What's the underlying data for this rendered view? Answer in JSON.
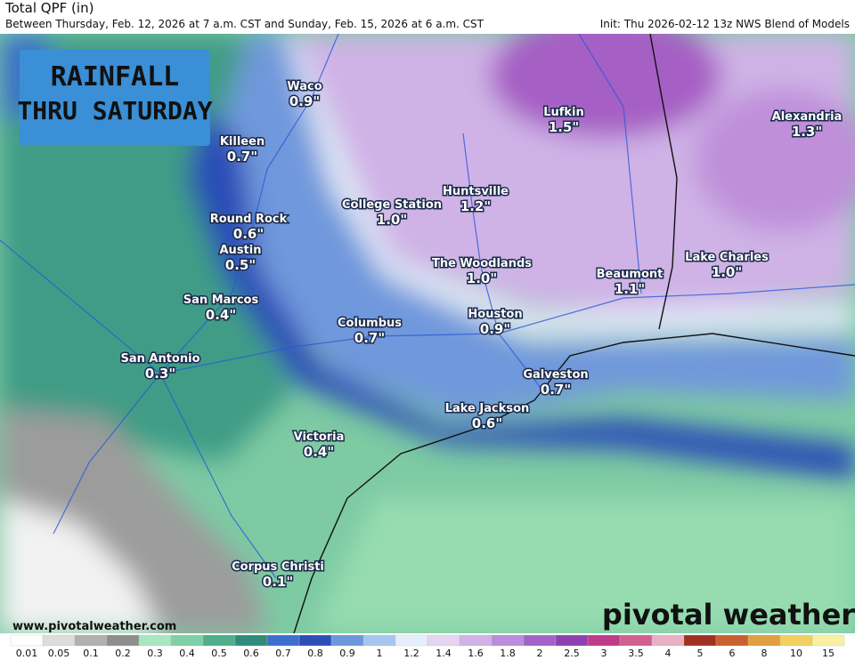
{
  "header": {
    "title": "Total QPF (in)",
    "subtitle": "Between Thursday, Feb. 12, 2026 at 7 a.m. CST and Sunday, Feb. 15, 2026 at 6 a.m. CST",
    "init": "Init: Thu 2026-02-12 13z NWS Blend of Models"
  },
  "banner": {
    "line1": "RAINFALL",
    "line2": "THRU SATURDAY"
  },
  "cities": [
    {
      "name": "Waco",
      "amount": "0.9\""
    },
    {
      "name": "Killeen",
      "amount": "0.7\""
    },
    {
      "name": "Round Rock",
      "amount": "0.6\""
    },
    {
      "name": "Austin",
      "amount": "0.5\""
    },
    {
      "name": "San Marcos",
      "amount": "0.4\""
    },
    {
      "name": "San Antonio",
      "amount": "0.3\""
    },
    {
      "name": "College Station",
      "amount": "1.0\""
    },
    {
      "name": "Huntsville",
      "amount": "1.2\""
    },
    {
      "name": "The Woodlands",
      "amount": "1.0\""
    },
    {
      "name": "Lufkin",
      "amount": "1.5\""
    },
    {
      "name": "Alexandria",
      "amount": "1.3\""
    },
    {
      "name": "Beaumont",
      "amount": "1.1\""
    },
    {
      "name": "Lake Charles",
      "amount": "1.0\""
    },
    {
      "name": "Houston",
      "amount": "0.9\""
    },
    {
      "name": "Columbus",
      "amount": "0.7\""
    },
    {
      "name": "Galveston",
      "amount": "0.7\""
    },
    {
      "name": "Lake Jackson",
      "amount": "0.6\""
    },
    {
      "name": "Victoria",
      "amount": "0.4\""
    },
    {
      "name": "Corpus Christi",
      "amount": "0.1\""
    }
  ],
  "footer": {
    "url": "www.pivotalweather.com",
    "logo": "pivotal weather"
  },
  "legend": {
    "labels": [
      "0.01",
      "0.05",
      "0.1",
      "0.2",
      "0.3",
      "0.4",
      "0.5",
      "0.6",
      "0.7",
      "0.8",
      "0.9",
      "1",
      "1.2",
      "1.4",
      "1.6",
      "1.8",
      "2",
      "2.5",
      "3",
      "3.5",
      "4",
      "5",
      "6",
      "8",
      "10",
      "15"
    ]
  }
}
